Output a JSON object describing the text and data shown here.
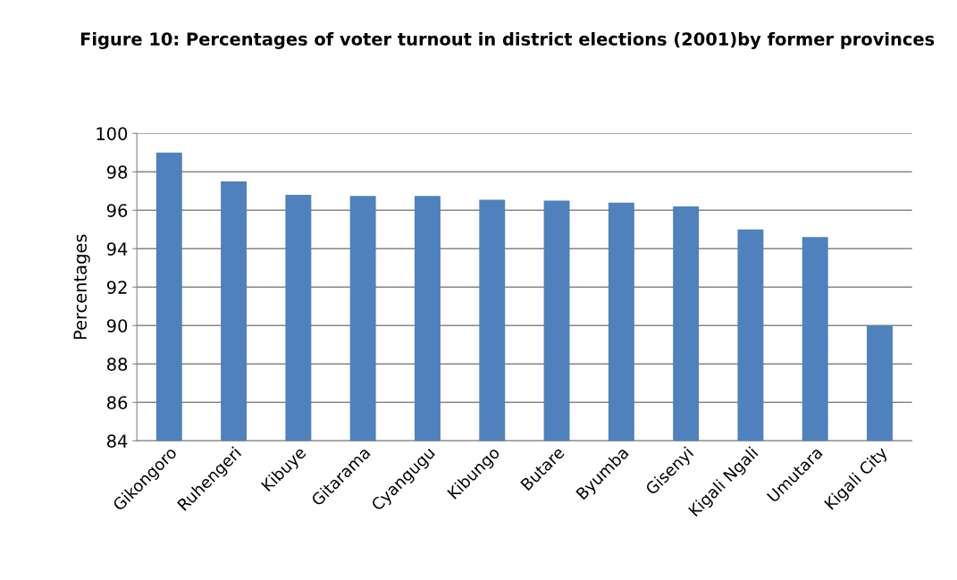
{
  "chart_data": {
    "type": "bar",
    "title": "Figure 10: Percentages of voter turnout in district elections (2001)by former provinces",
    "ylabel": "Percentages",
    "categories": [
      "Gikongoro",
      "Ruhengeri",
      "Kibuye",
      "Gitarama",
      "Cyangugu",
      "Kibungo",
      "Butare",
      "Byumba",
      "Gisenyi",
      "Kigali Ngali",
      "Umutara",
      "Kigali City"
    ],
    "values": [
      99.0,
      97.5,
      96.8,
      96.75,
      96.75,
      96.55,
      96.5,
      96.4,
      96.2,
      95.0,
      94.6,
      90.0
    ],
    "color": "#4f81bd",
    "ylim": [
      84,
      100
    ],
    "yticks": [
      84,
      86,
      88,
      90,
      92,
      94,
      96,
      98,
      100
    ],
    "grid": "y",
    "legend": false
  }
}
